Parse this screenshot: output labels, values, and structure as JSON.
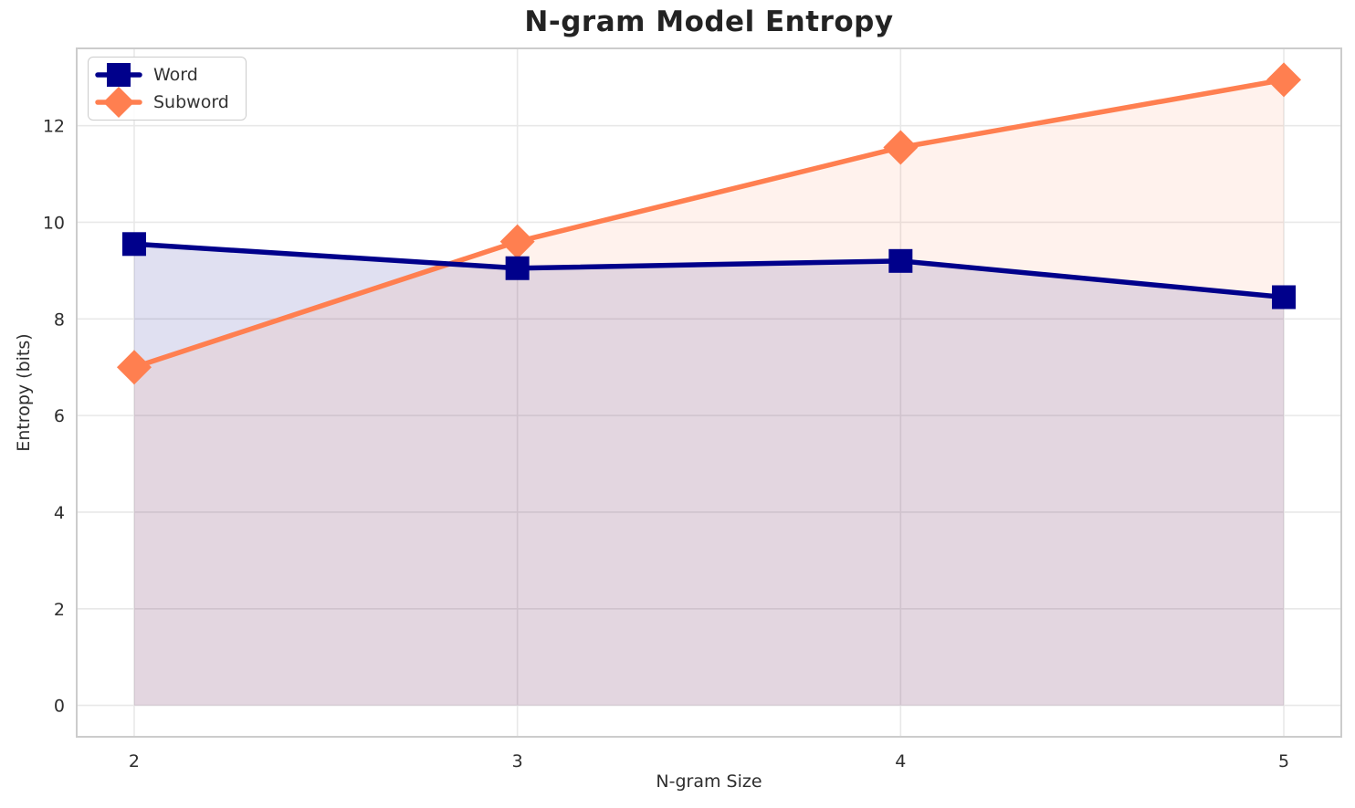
{
  "chart_data": {
    "type": "line",
    "title": "N-gram Model Entropy",
    "xlabel": "N-gram Size",
    "ylabel": "Entropy (bits)",
    "x": [
      2,
      3,
      4,
      5
    ],
    "series": [
      {
        "name": "Word",
        "values": [
          9.55,
          9.05,
          9.2,
          8.45
        ],
        "color": "#00008B",
        "marker": "square",
        "fill_alpha": 0.12
      },
      {
        "name": "Subword",
        "values": [
          7.0,
          9.6,
          11.55,
          12.95
        ],
        "color": "#FF7F50",
        "marker": "diamond",
        "fill_alpha": 0.1
      }
    ],
    "xticks": [
      "2",
      "3",
      "4",
      "5"
    ],
    "xtick_values": [
      2,
      3,
      4,
      5
    ],
    "yticks": [
      "0",
      "2",
      "4",
      "6",
      "8",
      "10",
      "12"
    ],
    "ytick_values": [
      0,
      2,
      4,
      6,
      8,
      10,
      12
    ],
    "xlim": [
      1.85,
      5.15
    ],
    "ylim": [
      -0.65,
      13.6
    ],
    "grid": true,
    "fill_to_zero": true,
    "legend_position": "upper left",
    "line_width": 5.5,
    "colors": {
      "grid": "#E8E8E8",
      "spine": "#CCCCCC",
      "title": "#232323",
      "tick": "#2e2e2e",
      "label": "#2e2e2e",
      "legend_text": "#333333",
      "background": "#FFFFFF"
    }
  }
}
